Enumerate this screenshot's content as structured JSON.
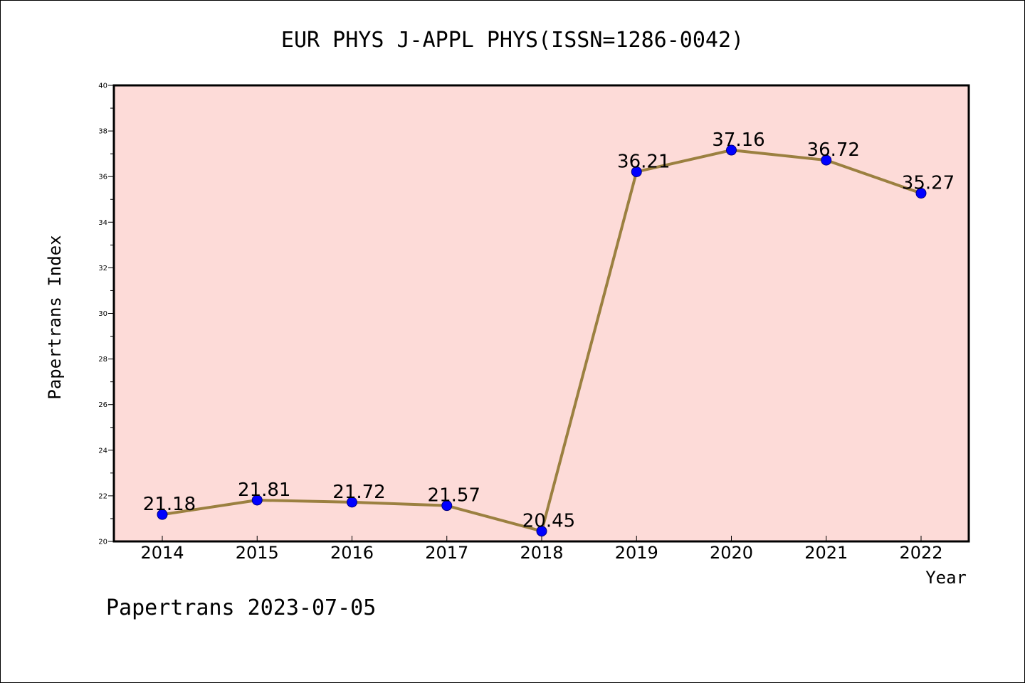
{
  "chart_data": {
    "type": "line",
    "title": "EUR PHYS J-APPL PHYS(ISSN=1286-0042)",
    "xlabel": "Year",
    "ylabel": "Papertrans Index",
    "categories": [
      "2014",
      "2015",
      "2016",
      "2017",
      "2018",
      "2019",
      "2020",
      "2021",
      "2022"
    ],
    "series": [
      {
        "values": [
          21.18,
          21.81,
          21.72,
          21.57,
          20.45,
          36.21,
          37.16,
          36.72,
          35.27
        ],
        "labels": [
          "21.18",
          "21.81",
          "21.72",
          "21.57",
          "20.45",
          "36.21",
          "37.16",
          "36.72",
          "35.27"
        ]
      }
    ],
    "ylim": [
      20,
      40
    ],
    "yticks": [
      "20",
      "22",
      "24",
      "26",
      "28",
      "30",
      "32",
      "34",
      "36",
      "38",
      "40"
    ],
    "grid": false,
    "legend": "none",
    "footer": "Papertrans 2023-07-05",
    "colors": {
      "plot_background": "#fddbd8",
      "line": "#9b8040",
      "marker": "#0000ff",
      "marker_edge": "#000080"
    }
  }
}
